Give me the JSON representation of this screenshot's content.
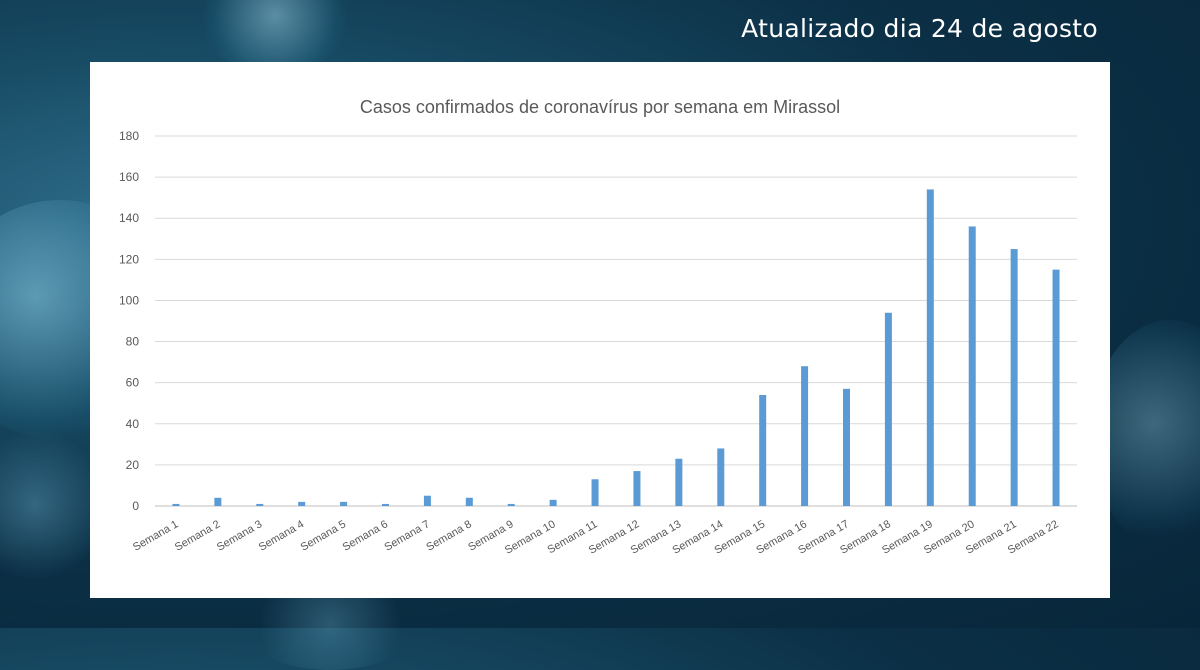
{
  "header": {
    "update_text": "Atualizado dia 24 de agosto"
  },
  "chart_data": {
    "type": "bar",
    "title": "Casos confirmados de coronavírus por semana em Mirassol",
    "xlabel": "",
    "ylabel": "",
    "ylim": [
      0,
      180
    ],
    "yticks": [
      0,
      20,
      40,
      60,
      80,
      100,
      120,
      140,
      160,
      180
    ],
    "grid": true,
    "legend": "none",
    "bar_color": "#5b9bd5",
    "categories": [
      "Semana 1",
      "Semana 2",
      "Semana 3",
      "Semana 4",
      "Semana 5",
      "Semana 6",
      "Semana 7",
      "Semana 8",
      "Semana 9",
      "Semana 10",
      "Semana 11",
      "Semana 12",
      "Semana 13",
      "Semana 14",
      "Semana 15",
      "Semana 16",
      "Semana 17",
      "Semana 18",
      "Semana 19",
      "Semana 20",
      "Semana 21",
      "Semana 22"
    ],
    "values": [
      1,
      4,
      1,
      2,
      2,
      1,
      5,
      4,
      1,
      3,
      13,
      17,
      23,
      28,
      54,
      68,
      57,
      94,
      154,
      136,
      125,
      115
    ]
  }
}
